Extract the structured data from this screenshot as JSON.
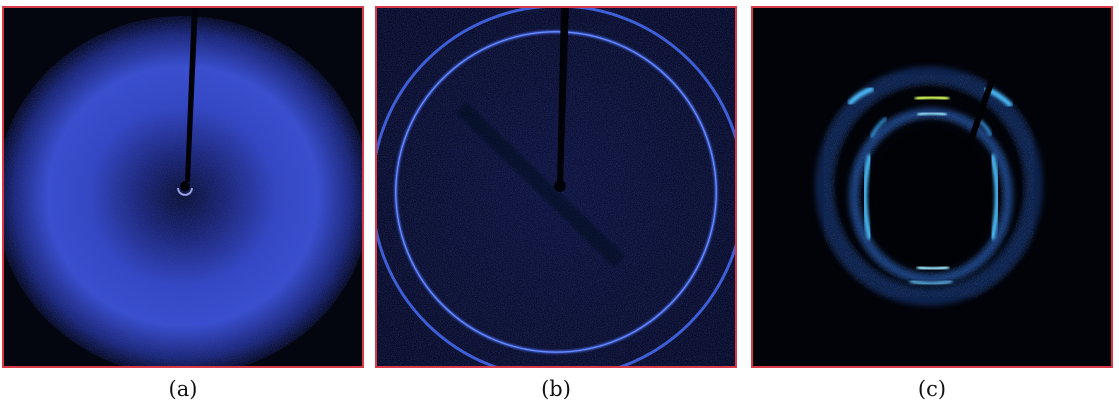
{
  "panels": [
    {
      "id": "a",
      "caption": "(a)",
      "pattern": "diffuse-halo",
      "color": "#3a4fd0"
    },
    {
      "id": "b",
      "caption": "(b)",
      "pattern": "sharp-ring",
      "color": "#4a72ff"
    },
    {
      "id": "c",
      "caption": "(c)",
      "pattern": "segmented-ring",
      "color": "#4ec0ff"
    }
  ],
  "colors": {
    "frame": "#d83a4a",
    "background": "#04060f",
    "spot_highlight": "#d8ff5a"
  }
}
